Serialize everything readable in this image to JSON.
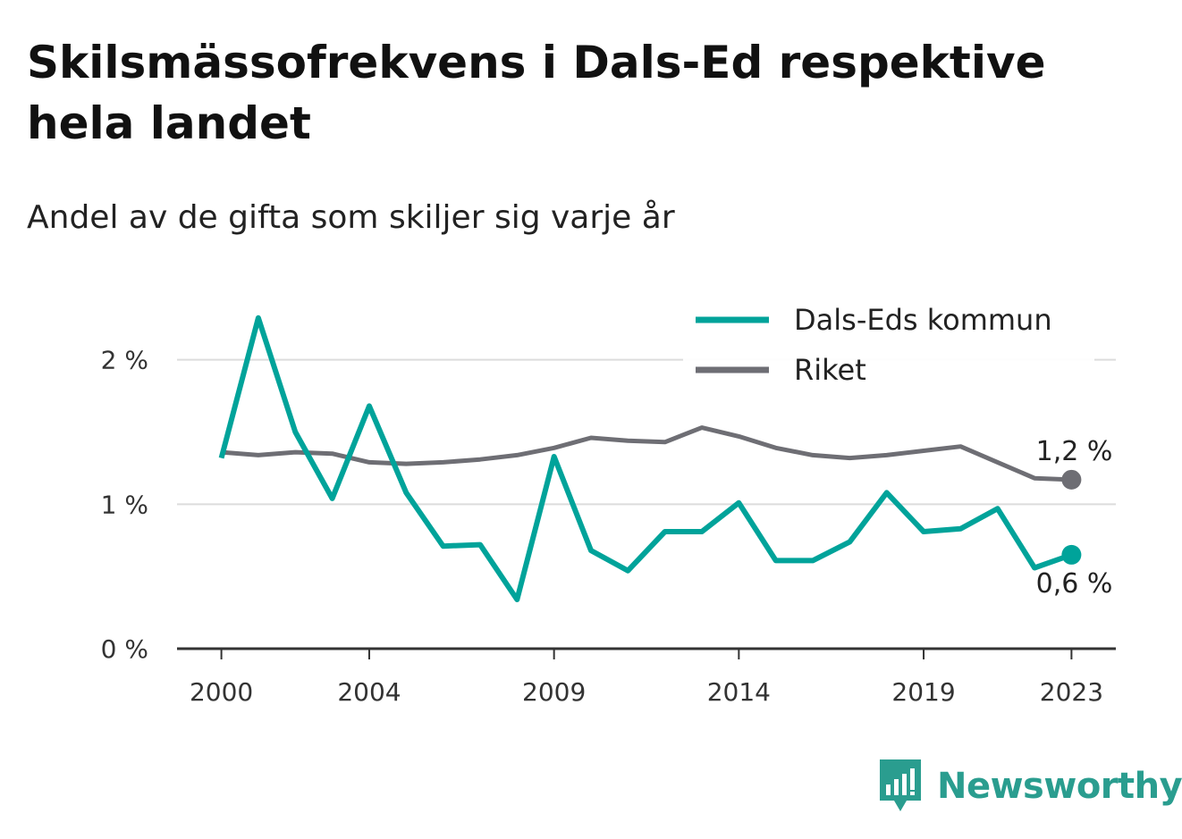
{
  "header": {
    "title": "Skilsmässofrekvens i Dals-Ed respektive hela landet",
    "subtitle": "Andel av de gifta som skiljer sig varje år"
  },
  "branding": {
    "name": "Newsworthy",
    "icon": "newsworthy-logo-icon",
    "color": "#2a9d8f"
  },
  "chart_data": {
    "type": "line",
    "x": [
      2000,
      2001,
      2002,
      2003,
      2004,
      2005,
      2006,
      2007,
      2008,
      2009,
      2010,
      2011,
      2012,
      2013,
      2014,
      2015,
      2016,
      2017,
      2018,
      2019,
      2020,
      2021,
      2022,
      2023
    ],
    "x_tick_labels": [
      "2000",
      "2004",
      "2009",
      "2014",
      "2019",
      "2023"
    ],
    "x_tick_values": [
      2000,
      2004,
      2009,
      2014,
      2019,
      2023
    ],
    "y_tick_labels": [
      "0 %",
      "1 %",
      "2 %"
    ],
    "y_tick_values": [
      0,
      1,
      2
    ],
    "ylim": [
      0,
      2.4
    ],
    "xlim": [
      1998.8,
      2024.2
    ],
    "grid": true,
    "legend_position": "top-right",
    "series": [
      {
        "name": "Dals-Eds kommun",
        "color": "#00a39a",
        "values": [
          1.32,
          2.29,
          1.5,
          1.04,
          1.68,
          1.08,
          0.71,
          0.72,
          0.34,
          1.33,
          0.68,
          0.54,
          0.81,
          0.81,
          1.01,
          0.61,
          0.61,
          0.74,
          1.08,
          0.81,
          0.83,
          0.97,
          0.56,
          0.65
        ],
        "end_label": "0,6 %"
      },
      {
        "name": "Riket",
        "color": "#6e6e74",
        "values": [
          1.36,
          1.34,
          1.36,
          1.35,
          1.29,
          1.28,
          1.29,
          1.31,
          1.34,
          1.39,
          1.46,
          1.44,
          1.43,
          1.53,
          1.47,
          1.39,
          1.34,
          1.32,
          1.34,
          1.37,
          1.4,
          1.29,
          1.18,
          1.17
        ],
        "end_label": "1,2 %"
      }
    ]
  }
}
